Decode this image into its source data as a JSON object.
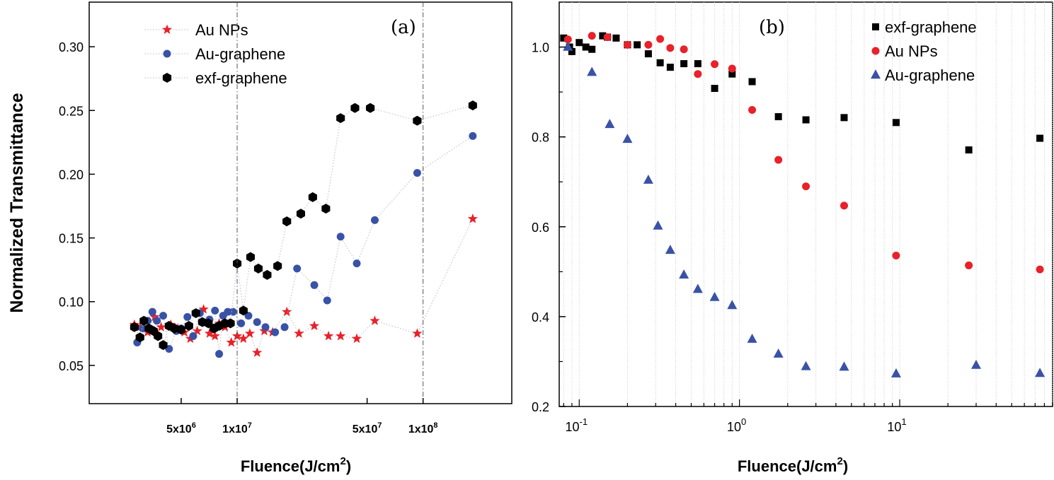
{
  "chart_data": [
    {
      "panel": "(a)",
      "type": "scatter",
      "xscale": "log",
      "xlabel_main": "Fluence(J/cm",
      "xlabel_sup": "2",
      "xlabel_close": ")",
      "ylabel": "Normalized Transmittance",
      "xlim": [
        1600000.0,
        300000000.0
      ],
      "ylim": [
        0.02,
        0.335
      ],
      "yticks": [
        0.05,
        0.1,
        0.15,
        0.2,
        0.25,
        0.3
      ],
      "ytick_labels": [
        "0.05",
        "0.10",
        "0.15",
        "0.20",
        "0.25",
        "0.30"
      ],
      "xticks": [
        5000000.0,
        10000000.0,
        50000000.0,
        100000000.0
      ],
      "xtick_base": [
        "5x10",
        "1x10",
        "5x10",
        "1x10"
      ],
      "xtick_exp": [
        "6",
        "7",
        "7",
        "8"
      ],
      "vlines": [
        10000000.0,
        100000000.0
      ],
      "series": [
        {
          "name": "Au NPs",
          "marker": "star",
          "color": "#e8212a",
          "x": [
            2800000.0,
            3000000.0,
            3300000.0,
            3600000.0,
            3900000.0,
            4400000.0,
            4800000.0,
            5200000.0,
            5600000.0,
            6100000.0,
            6600000.0,
            7100000.0,
            7600000.0,
            8000000.0,
            8600000.0,
            9300000.0,
            10000000.0,
            10800000.0,
            11700000.0,
            12800000.0,
            14000000.0,
            15500000.0,
            18500000.0,
            21500000.0,
            26000000.0,
            31000000.0,
            36000000.0,
            44000000.0,
            55000000.0,
            93000000.0,
            185000000.0
          ],
          "y": [
            0.082,
            0.08,
            0.076,
            0.088,
            0.08,
            0.082,
            0.079,
            0.076,
            0.071,
            0.077,
            0.094,
            0.075,
            0.073,
            0.083,
            0.08,
            0.068,
            0.073,
            0.071,
            0.075,
            0.06,
            0.077,
            0.076,
            0.092,
            0.075,
            0.081,
            0.073,
            0.073,
            0.071,
            0.085,
            0.075,
            0.165
          ]
        },
        {
          "name": "Au-graphene",
          "marker": "circle",
          "color": "#3952a6",
          "x": [
            2900000.0,
            3100000.0,
            3300000.0,
            3500000.0,
            3700000.0,
            4000000.0,
            4300000.0,
            4700000.0,
            5000000.0,
            5400000.0,
            5800000.0,
            6300000.0,
            7100000.0,
            7600000.0,
            8000000.0,
            8400000.0,
            8900000.0,
            9500000.0,
            10500000.0,
            11500000.0,
            12800000.0,
            14200000.0,
            16000000.0,
            18000000.0,
            21000000.0,
            26000000.0,
            30500000.0,
            36000000.0,
            44000000.0,
            55000000.0,
            93000000.0,
            185000000.0
          ],
          "y": [
            0.068,
            0.079,
            0.085,
            0.092,
            0.085,
            0.089,
            0.063,
            0.077,
            0.079,
            0.088,
            0.073,
            0.091,
            0.086,
            0.093,
            0.059,
            0.089,
            0.092,
            0.092,
            0.083,
            0.089,
            0.084,
            0.08,
            0.076,
            0.08,
            0.126,
            0.113,
            0.101,
            0.151,
            0.13,
            0.164,
            0.201,
            0.23
          ]
        },
        {
          "name": "exf-graphene",
          "marker": "hexagon",
          "color": "#000000",
          "x": [
            2800000.0,
            3000000.0,
            3150000.0,
            3350000.0,
            3550000.0,
            3750000.0,
            4000000.0,
            4300000.0,
            4600000.0,
            5000000.0,
            5500000.0,
            6000000.0,
            6500000.0,
            7000000.0,
            7500000.0,
            8000000.0,
            8600000.0,
            9200000.0,
            10000000.0,
            10800000.0,
            11800000.0,
            13000000.0,
            14500000.0,
            16500000.0,
            18500000.0,
            22000000.0,
            25500000.0,
            30000000.0,
            36000000.0,
            43000000.0,
            52000000.0,
            93000000.0,
            185000000.0
          ],
          "y": [
            0.08,
            0.072,
            0.085,
            0.079,
            0.077,
            0.073,
            0.066,
            0.081,
            0.079,
            0.078,
            0.081,
            0.091,
            0.084,
            0.083,
            0.079,
            0.081,
            0.083,
            0.083,
            0.13,
            0.093,
            0.135,
            0.126,
            0.121,
            0.128,
            0.163,
            0.169,
            0.182,
            0.173,
            0.244,
            0.252,
            0.252,
            0.242,
            0.254
          ]
        }
      ]
    },
    {
      "panel": "(b)",
      "type": "scatter",
      "xscale": "log",
      "xlabel_main": "Fluence(J/cm",
      "xlabel_sup": "2",
      "xlabel_close": ")",
      "ylabel": "",
      "xlim": [
        0.075,
        90
      ],
      "ylim": [
        0.2,
        1.1
      ],
      "yticks": [
        0.2,
        0.4,
        0.6,
        0.8,
        1.0
      ],
      "ytick_labels": [
        "0.2",
        "0.4",
        "0.6",
        "0.8",
        "1.0"
      ],
      "xticks": [
        0.1,
        1,
        10
      ],
      "xtick_base": [
        "10",
        "10",
        "10"
      ],
      "xtick_exp": [
        "-1",
        "0",
        "1"
      ],
      "series": [
        {
          "name": "exf-graphene",
          "marker": "square",
          "color": "#000000",
          "x": [
            0.08,
            0.087,
            0.09,
            0.1,
            0.11,
            0.12,
            0.14,
            0.15,
            0.17,
            0.2,
            0.23,
            0.27,
            0.32,
            0.37,
            0.45,
            0.55,
            0.7,
            0.9,
            1.2,
            1.75,
            2.6,
            4.5,
            9.5,
            27,
            75
          ],
          "y": [
            1.02,
            1.0,
            0.99,
            1.01,
            1.0,
            0.995,
            1.025,
            1.022,
            1.02,
            1.005,
            1.005,
            0.985,
            0.965,
            0.955,
            0.963,
            0.963,
            0.908,
            0.94,
            0.923,
            0.845,
            0.838,
            0.843,
            0.832,
            0.771,
            0.797
          ]
        },
        {
          "name": "Au NPs",
          "marker": "circle",
          "color": "#e8212a",
          "x": [
            0.085,
            0.12,
            0.15,
            0.2,
            0.27,
            0.32,
            0.37,
            0.45,
            0.55,
            0.7,
            0.9,
            1.2,
            1.75,
            2.6,
            4.5,
            9.5,
            27,
            75
          ],
          "y": [
            1.017,
            1.025,
            1.022,
            1.005,
            1.005,
            1.018,
            0.998,
            0.995,
            0.94,
            0.962,
            0.952,
            0.86,
            0.749,
            0.69,
            0.647,
            0.536,
            0.514,
            0.505
          ]
        },
        {
          "name": "Au-graphene",
          "marker": "triangle",
          "color": "#3952a6",
          "x": [
            0.085,
            0.12,
            0.155,
            0.2,
            0.27,
            0.31,
            0.37,
            0.45,
            0.55,
            0.7,
            0.9,
            1.2,
            1.75,
            2.6,
            4.5,
            9.5,
            30,
            75
          ],
          "y": [
            1.0,
            0.944,
            0.828,
            0.795,
            0.704,
            0.602,
            0.548,
            0.493,
            0.461,
            0.443,
            0.425,
            0.35,
            0.317,
            0.289,
            0.288,
            0.273,
            0.292,
            0.274
          ]
        }
      ]
    }
  ]
}
